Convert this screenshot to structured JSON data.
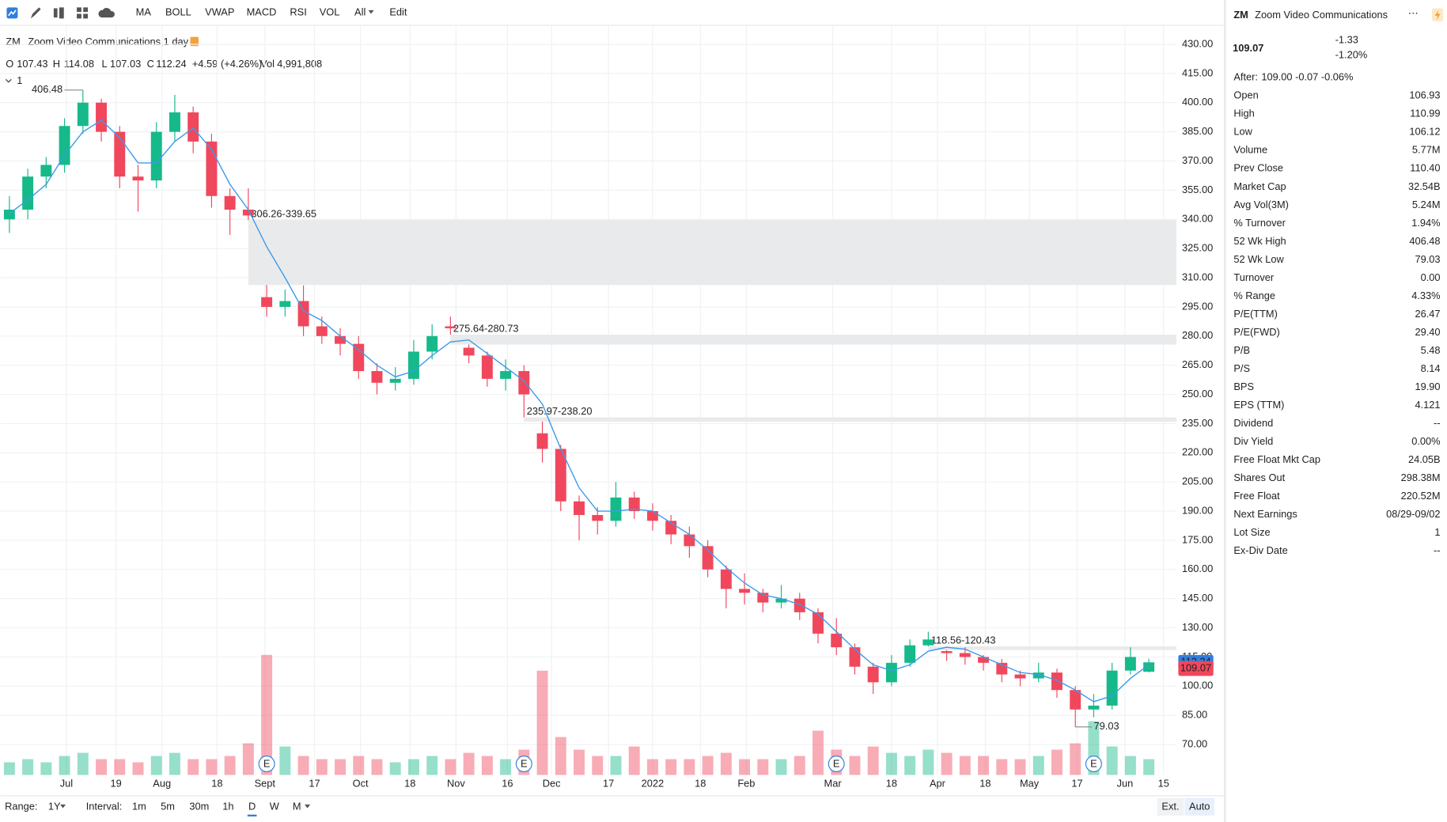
{
  "toolbar": {
    "indicators": [
      "MA",
      "BOLL",
      "VWAP",
      "MACD",
      "RSI",
      "VOL",
      "All"
    ],
    "edit": "Edit"
  },
  "legend": {
    "symbol": "ZM",
    "name": "Zoom Video Communications,1 day",
    "o": "O",
    "h": "H",
    "l": "L",
    "c": "C",
    "change": "+4.59",
    "change_pct": "(+4.26%)",
    "vol": "Vol",
    "vol_value": "4,991,808",
    "pane": "1"
  },
  "chart_data": {
    "type": "candlestick",
    "open": [
      340,
      345,
      362,
      368,
      388,
      400,
      385,
      362,
      360,
      385,
      395,
      380,
      352,
      345,
      300,
      295,
      298,
      285,
      280,
      276,
      262,
      256,
      258,
      272,
      285,
      274,
      270,
      258,
      262,
      230,
      222,
      195,
      188,
      185,
      197,
      190,
      185,
      178,
      172,
      160,
      150,
      148,
      143,
      145,
      138,
      127,
      120,
      110,
      102,
      112,
      121,
      118,
      117,
      115,
      112,
      106,
      104,
      107,
      98,
      88,
      90,
      108,
      107.43
    ],
    "high": [
      352,
      366,
      372,
      392,
      406.48,
      402,
      388,
      368,
      390,
      404,
      398,
      384,
      356,
      356,
      306.26,
      304,
      306,
      290,
      284,
      280,
      266,
      264,
      278,
      286,
      290,
      275.64,
      272,
      268,
      265,
      235.97,
      224,
      198,
      192,
      205,
      200,
      194,
      188,
      182,
      175,
      162,
      158,
      150,
      152,
      148,
      140,
      135,
      122,
      112,
      116,
      124,
      128,
      118.56,
      120,
      116,
      114,
      108,
      112,
      109,
      100,
      96,
      112,
      120,
      114.08
    ],
    "low": [
      333,
      340,
      356,
      364,
      384,
      380,
      356,
      344,
      356,
      380,
      374,
      346,
      332,
      339.65,
      290,
      290,
      280,
      276,
      270,
      258,
      250,
      252,
      255,
      268,
      280.73,
      266,
      254,
      252,
      238.2,
      215,
      190,
      175,
      178,
      182,
      186,
      180,
      173,
      166,
      156,
      140,
      142,
      138,
      140,
      134,
      122,
      116,
      106,
      96,
      100,
      110,
      120.43,
      113,
      111,
      108,
      102,
      100,
      102,
      94,
      79.03,
      84,
      88,
      106,
      107.03
    ],
    "close": [
      345,
      362,
      368,
      388,
      400,
      385,
      362,
      360,
      385,
      395,
      380,
      352,
      345,
      342,
      295,
      298,
      285,
      280,
      276,
      262,
      256,
      258,
      272,
      280,
      284,
      270,
      258,
      262,
      250,
      222,
      195,
      188,
      185,
      197,
      190,
      185,
      178,
      172,
      160,
      150,
      148,
      143,
      145,
      138,
      127,
      120,
      110,
      102,
      112,
      121,
      124,
      117,
      115,
      112,
      106,
      104,
      107,
      98,
      88,
      90,
      108,
      115,
      112.24
    ],
    "ma": [
      343,
      350,
      358,
      373,
      385,
      391,
      382,
      369,
      369,
      380,
      387,
      376,
      358,
      345,
      326,
      310,
      293,
      288,
      280,
      273,
      265,
      259,
      262,
      270,
      277,
      278,
      271,
      264,
      257,
      245,
      222,
      202,
      190,
      190,
      191,
      190,
      184,
      178,
      170,
      161,
      153,
      147,
      145,
      142,
      137,
      128,
      119,
      111,
      108,
      111,
      118,
      120,
      119,
      115,
      111,
      107,
      106,
      103,
      98,
      92,
      95,
      104,
      111
    ],
    "volume": [
      4,
      5,
      4,
      6,
      7,
      5,
      5,
      4,
      6,
      7,
      5,
      5,
      6,
      10,
      38,
      9,
      6,
      5,
      5,
      6,
      5,
      4,
      5,
      6,
      5,
      7,
      6,
      5,
      8,
      33,
      12,
      8,
      6,
      6,
      9,
      5,
      5,
      5,
      6,
      7,
      5,
      5,
      5,
      6,
      14,
      8,
      6,
      9,
      7,
      6,
      8,
      7,
      6,
      6,
      5,
      5,
      6,
      8,
      10,
      17,
      9,
      6,
      5
    ],
    "volume_lim": [
      0,
      40
    ],
    "up_color": "#16b98a",
    "down_color": "#f0475d",
    "ma_color": "#3d9be9",
    "ylim": [
      54.35,
      439.5
    ],
    "yticks": [
      {
        "value": 70,
        "label": "70.00"
      },
      {
        "value": 85,
        "label": "85.00"
      },
      {
        "value": 100,
        "label": "100.00"
      },
      {
        "value": 115,
        "label": "115.00"
      },
      {
        "value": 130,
        "label": "130.00"
      },
      {
        "value": 145,
        "label": "145.00"
      },
      {
        "value": 160,
        "label": "160.00"
      },
      {
        "value": 175,
        "label": "175.00"
      },
      {
        "value": 190,
        "label": "190.00"
      },
      {
        "value": 205,
        "label": "205.00"
      },
      {
        "value": 220,
        "label": "220.00"
      },
      {
        "value": 235,
        "label": "235.00"
      },
      {
        "value": 250,
        "label": "250.00"
      },
      {
        "value": 265,
        "label": "265.00"
      },
      {
        "value": 280,
        "label": "280.00"
      },
      {
        "value": 295,
        "label": "295.00"
      },
      {
        "value": 310,
        "label": "310.00"
      },
      {
        "value": 325,
        "label": "325.00"
      },
      {
        "value": 340,
        "label": "340.00"
      },
      {
        "value": 355,
        "label": "355.00"
      },
      {
        "value": 370,
        "label": "370.00"
      },
      {
        "value": 385,
        "label": "385.00"
      },
      {
        "value": 400,
        "label": "400.00"
      },
      {
        "value": 415,
        "label": "415.00"
      },
      {
        "value": 430,
        "label": "430.00"
      }
    ],
    "xticks": [
      {
        "value": 3.1,
        "label": "Jul"
      },
      {
        "value": 5.8,
        "label": "19"
      },
      {
        "value": 8.3,
        "label": "Aug"
      },
      {
        "value": 11.3,
        "label": "18"
      },
      {
        "value": 13.9,
        "label": "Sept"
      },
      {
        "value": 16.6,
        "label": "17"
      },
      {
        "value": 19.1,
        "label": "Oct"
      },
      {
        "value": 21.8,
        "label": "18"
      },
      {
        "value": 24.3,
        "label": "Nov"
      },
      {
        "value": 27.1,
        "label": "16"
      },
      {
        "value": 29.5,
        "label": "Dec"
      },
      {
        "value": 32.6,
        "label": "17"
      },
      {
        "value": 35.0,
        "label": "2022"
      },
      {
        "value": 37.6,
        "label": "18"
      },
      {
        "value": 40.1,
        "label": "Feb"
      },
      {
        "value": 44.8,
        "label": "Mar"
      },
      {
        "value": 48.0,
        "label": "18"
      },
      {
        "value": 50.5,
        "label": "Apr"
      },
      {
        "value": 53.1,
        "label": "18"
      },
      {
        "value": 55.5,
        "label": "May"
      },
      {
        "value": 58.1,
        "label": "17"
      },
      {
        "value": 60.7,
        "label": "Jun"
      },
      {
        "value": 62.8,
        "label": "15"
      }
    ],
    "grid": true,
    "gaps": [
      {
        "label": "306.26-339.65",
        "low": 306.26,
        "high": 339.65,
        "start": 13
      },
      {
        "label": "275.64-280.73",
        "low": 275.64,
        "high": 280.73,
        "start": 24
      },
      {
        "label": "235.97-238.20",
        "low": 235.97,
        "high": 238.2,
        "start": 28
      },
      {
        "label": "118.56-120.43",
        "low": 118.56,
        "high": 120.43,
        "start": 50
      }
    ],
    "earnings": {
      "label": "E",
      "at": [
        14,
        28,
        45,
        59
      ]
    }
  },
  "bottom_bar": {
    "range_label": "Range:",
    "range": "1Y",
    "interval_label": "Interval:",
    "intervals": [
      "1m",
      "5m",
      "30m",
      "1h",
      "D",
      "W",
      "M"
    ],
    "active_interval": 4,
    "ext": "Ext.",
    "auto": "Auto"
  },
  "quote": {
    "symbol": "ZM",
    "name": "Zoom Video Communications",
    "price": 109.07,
    "change": "-1.33",
    "change_pct": "-1.20%",
    "after_label": "After:",
    "after": "109.00 -0.07 -0.06%",
    "stats": [
      [
        "Open",
        "106.93"
      ],
      [
        "High",
        "110.99"
      ],
      [
        "Low",
        "106.12"
      ],
      [
        "Volume",
        "5.77M"
      ],
      [
        "Prev Close",
        "110.40"
      ],
      [
        "Market Cap",
        "32.54B"
      ],
      [
        "Avg Vol(3M)",
        "5.24M"
      ],
      [
        "% Turnover",
        "1.94%"
      ],
      [
        "52 Wk High",
        "406.48"
      ],
      [
        "52 Wk Low",
        "79.03"
      ],
      [
        "Turnover",
        "0.00"
      ],
      [
        "% Range",
        "4.33%"
      ],
      [
        "P/E(TTM)",
        "26.47"
      ],
      [
        "P/E(FWD)",
        "29.40"
      ],
      [
        "P/B",
        "5.48"
      ],
      [
        "P/S",
        "8.14"
      ],
      [
        "BPS",
        "19.90"
      ],
      [
        "EPS (TTM)",
        "4.121"
      ],
      [
        "Dividend",
        "--"
      ],
      [
        "Div Yield",
        "0.00%"
      ],
      [
        "Free Float Mkt Cap",
        "24.05B"
      ],
      [
        "Shares Out",
        "298.38M"
      ],
      [
        "Free Float",
        "220.52M"
      ],
      [
        "Next Earnings",
        "08/29-09/02"
      ],
      [
        "Lot Size",
        "1"
      ],
      [
        "Ex-Div Date",
        "--"
      ]
    ]
  }
}
